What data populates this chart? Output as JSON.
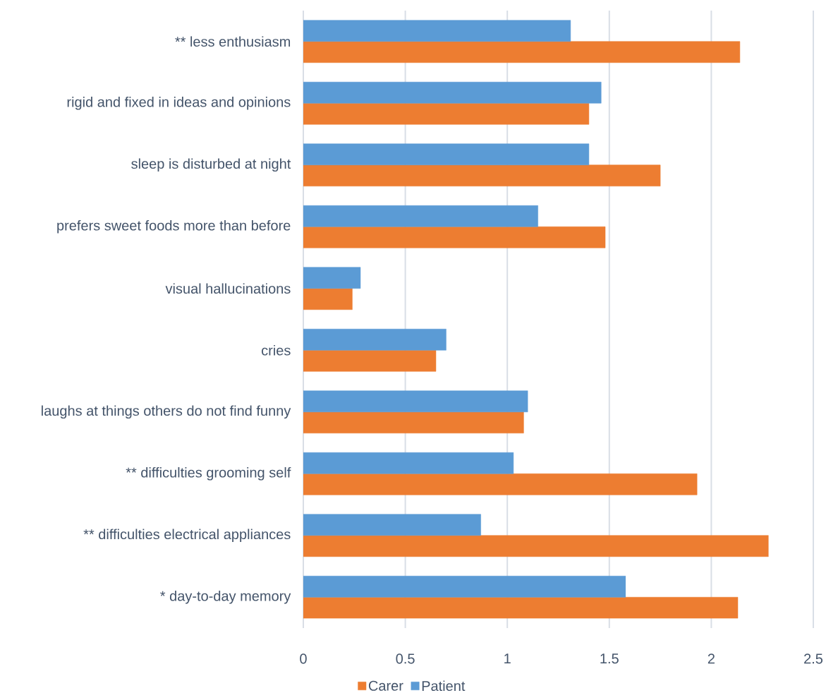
{
  "chart_data": {
    "type": "bar",
    "orientation": "horizontal",
    "categories": [
      "** less enthusiasm",
      "rigid and fixed in ideas and opinions",
      "sleep is disturbed at night",
      "prefers sweet foods more than before",
      "visual hallucinations",
      "cries",
      "laughs at things others do not find funny",
      "** difficulties grooming self",
      "** difficulties electrical appliances",
      "* day-to-day memory"
    ],
    "series": [
      {
        "name": "Carer",
        "color": "#ed7d31",
        "values": [
          2.14,
          1.4,
          1.75,
          1.48,
          0.24,
          0.65,
          1.08,
          1.93,
          2.28,
          2.13
        ]
      },
      {
        "name": "Patient",
        "color": "#5b9bd5",
        "values": [
          1.31,
          1.46,
          1.4,
          1.15,
          0.28,
          0.7,
          1.1,
          1.03,
          0.87,
          1.58
        ]
      }
    ],
    "xlim": [
      0,
      2.5
    ],
    "xticks": [
      0,
      0.5,
      1,
      1.5,
      2,
      2.5
    ],
    "grid": "x",
    "legend": "bottom"
  }
}
